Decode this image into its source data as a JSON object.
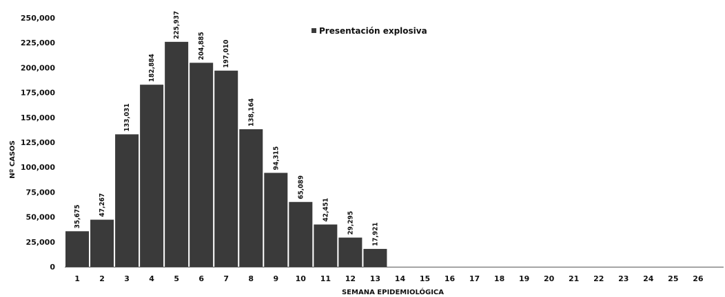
{
  "chart_data": {
    "type": "bar",
    "xlabel": "SEMANA EPIDEMIOLÓGICA",
    "ylabel": "Nº CASOS",
    "ylim": [
      0,
      250000
    ],
    "yticks": [
      "0",
      "25,000",
      "50,000",
      "75,000",
      "100,000",
      "125,000",
      "150,000",
      "175,000",
      "200,000",
      "225,000",
      "250,000"
    ],
    "grid": false,
    "legend_position": "top-center",
    "categories": [
      "1",
      "2",
      "3",
      "4",
      "5",
      "6",
      "7",
      "8",
      "9",
      "10",
      "11",
      "12",
      "13",
      "14",
      "15",
      "16",
      "17",
      "18",
      "19",
      "20",
      "21",
      "22",
      "23",
      "24",
      "25",
      "26"
    ],
    "series": [
      {
        "name": "Presentación explosiva",
        "color": "#3a3a3a",
        "values": [
          35675,
          47267,
          133031,
          182884,
          225937,
          204885,
          197010,
          138164,
          94315,
          65089,
          42451,
          29295,
          17921,
          0,
          0,
          0,
          0,
          0,
          0,
          0,
          0,
          0,
          0,
          0,
          0,
          0
        ],
        "labels": [
          "35,675",
          "47,267",
          "133,031",
          "182,884",
          "225,937",
          "204,885",
          "197,010",
          "138,164",
          "94,315",
          "65,089",
          "42,451",
          "29,295",
          "17,921"
        ]
      }
    ]
  }
}
